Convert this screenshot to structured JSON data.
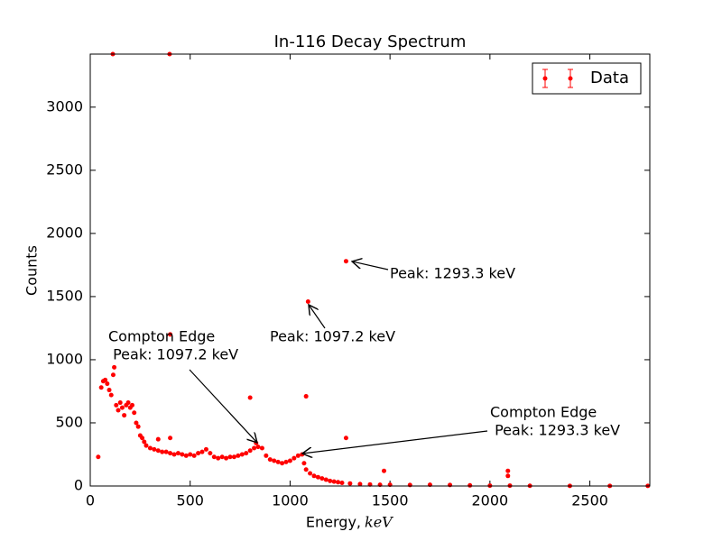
{
  "chart_data": {
    "type": "scatter",
    "title": "In-116 Decay Spectrum",
    "xlabel": "Energy,",
    "xlabel_unit": "keV",
    "ylabel": "Counts",
    "xlim": [
      0,
      2800
    ],
    "ylim": [
      0,
      3420
    ],
    "xticks": [
      0,
      500,
      1000,
      1500,
      2000,
      2500
    ],
    "yticks": [
      0,
      500,
      1000,
      1500,
      2000,
      2500,
      3000
    ],
    "legend": "upper right",
    "series": [
      {
        "name": "Data",
        "color": "#ff0000",
        "x": [
          40,
          113,
          397,
          55,
          65,
          75,
          85,
          95,
          105,
          115,
          120,
          130,
          140,
          150,
          160,
          170,
          180,
          190,
          200,
          210,
          220,
          230,
          240,
          250,
          260,
          270,
          280,
          300,
          320,
          340,
          360,
          380,
          400,
          420,
          440,
          460,
          480,
          500,
          520,
          540,
          560,
          580,
          600,
          620,
          640,
          660,
          680,
          700,
          720,
          740,
          760,
          780,
          800,
          820,
          840,
          860,
          880,
          900,
          920,
          940,
          960,
          980,
          1000,
          1020,
          1040,
          1060,
          1070,
          1080,
          1100,
          1120,
          1140,
          1160,
          1180,
          1200,
          1220,
          1240,
          1260,
          1300,
          1350,
          1400,
          1450,
          1500,
          1600,
          1700,
          1800,
          1900,
          2000,
          2100,
          2200,
          2400,
          2600,
          2790,
          340,
          400,
          400,
          800,
          830,
          1080,
          1090,
          1280,
          1280,
          1470,
          2090,
          2090
        ],
        "values": [
          230,
          3420,
          3420,
          780,
          830,
          840,
          810,
          760,
          720,
          880,
          940,
          640,
          600,
          660,
          620,
          560,
          640,
          660,
          620,
          640,
          580,
          500,
          470,
          400,
          380,
          350,
          320,
          300,
          290,
          280,
          270,
          270,
          260,
          250,
          260,
          250,
          240,
          250,
          240,
          260,
          270,
          290,
          260,
          230,
          220,
          230,
          220,
          230,
          230,
          240,
          250,
          260,
          280,
          300,
          310,
          300,
          240,
          210,
          200,
          190,
          180,
          190,
          200,
          220,
          240,
          250,
          180,
          130,
          100,
          80,
          70,
          60,
          50,
          40,
          35,
          30,
          25,
          20,
          15,
          12,
          10,
          10,
          8,
          10,
          8,
          5,
          3,
          3,
          2,
          1,
          1,
          1,
          370,
          380,
          1200,
          700,
          340,
          710,
          1460,
          1780,
          380,
          120,
          120,
          80
        ]
      }
    ],
    "annotations": [
      {
        "lines": [
          "Peak: 1293.3 keV"
        ],
        "xy": [
          1310,
          1778
        ]
      },
      {
        "lines": [
          "Peak: 1097.2 keV"
        ],
        "xy": [
          1093,
          1435
        ]
      },
      {
        "lines": [
          "Compton Edge",
          " Peak: 1097.2 keV"
        ],
        "xy": [
          835,
          343
        ]
      },
      {
        "lines": [
          "Compton Edge",
          " Peak: 1293.3 keV"
        ],
        "xy": [
          1061,
          257
        ]
      }
    ]
  }
}
